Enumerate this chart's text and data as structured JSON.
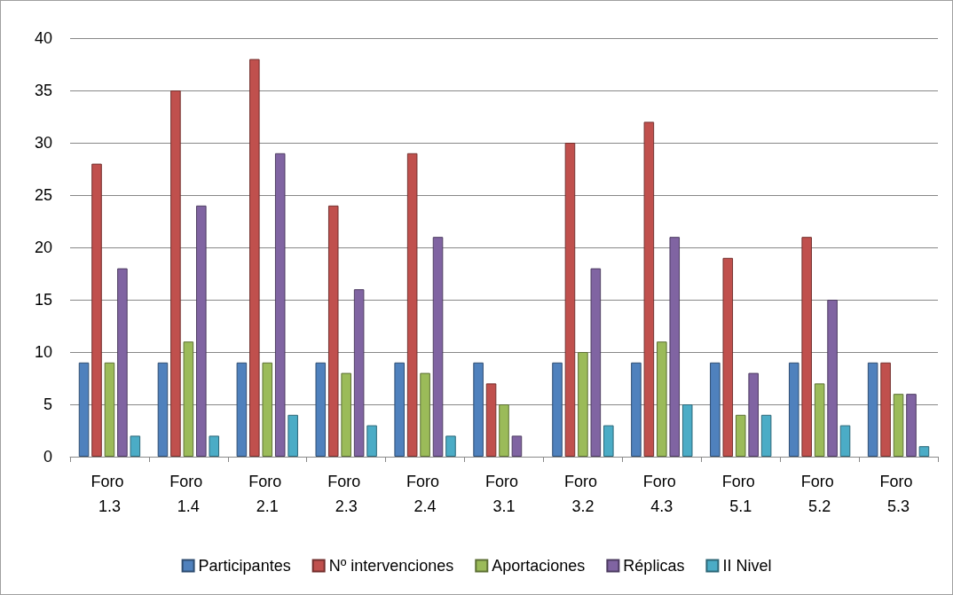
{
  "chart_data": {
    "type": "bar",
    "categories": [
      "Foro 1.3",
      "Foro 1.4",
      "Foro 2.1",
      "Foro 2.3",
      "Foro 2.4",
      "Foro 3.1",
      "Foro 3.2",
      "Foro 4.3",
      "Foro 5.1",
      "Foro 5.2",
      "Foro 5.3"
    ],
    "series": [
      {
        "name": "Participantes",
        "color": "#4f81bd",
        "values": [
          9,
          9,
          9,
          9,
          9,
          9,
          9,
          9,
          9,
          9,
          9
        ]
      },
      {
        "name": "Nº intervenciones",
        "color": "#c0504d",
        "values": [
          28,
          35,
          38,
          24,
          29,
          7,
          30,
          32,
          19,
          21,
          9
        ]
      },
      {
        "name": "Aportaciones",
        "color": "#9bbb59",
        "values": [
          9,
          11,
          9,
          8,
          8,
          5,
          10,
          11,
          4,
          7,
          6
        ]
      },
      {
        "name": "Réplicas",
        "color": "#8064a2",
        "values": [
          18,
          24,
          29,
          16,
          21,
          2,
          18,
          21,
          8,
          15,
          6
        ]
      },
      {
        "name": "II Nivel",
        "color": "#4bacc6",
        "values": [
          2,
          2,
          4,
          3,
          2,
          null,
          3,
          5,
          4,
          3,
          1
        ]
      }
    ],
    "ylim": [
      0,
      40
    ],
    "yticks": [
      0,
      5,
      10,
      15,
      20,
      25,
      30,
      35,
      40
    ],
    "grid": "y",
    "legend": "bottom"
  }
}
